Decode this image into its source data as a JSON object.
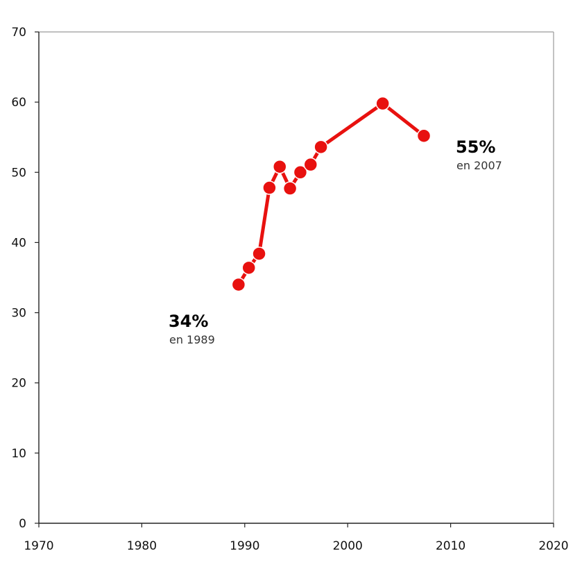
{
  "chart_data": {
    "type": "line",
    "title": "",
    "xlabel": "",
    "ylabel": "",
    "xlim": [
      1970,
      2020
    ],
    "ylim": [
      0,
      70
    ],
    "x_ticks": [
      1970,
      1980,
      1990,
      2000,
      2010,
      2020
    ],
    "y_ticks": [
      0,
      10,
      20,
      30,
      40,
      50,
      60,
      70
    ],
    "grid": false,
    "legend": "none",
    "series": [
      {
        "color": "#e8110f",
        "marker": "circle",
        "x": [
          1989.4,
          1990.4,
          1991.4,
          1992.4,
          1993.4,
          1994.4,
          1995.4,
          1996.4,
          1997.4,
          2003.4,
          2007.4
        ],
        "y": [
          34.0,
          36.4,
          38.4,
          47.8,
          50.8,
          47.7,
          50.0,
          51.1,
          53.6,
          59.8,
          55.2
        ]
      }
    ],
    "annotations": [
      {
        "id": "start",
        "value_text": "34%",
        "note_text": "en 1989",
        "x": 1982.6,
        "y": 28.0
      },
      {
        "id": "end",
        "value_text": "55%",
        "note_text": "en 2007",
        "x": 2010.5,
        "y": 52.8
      }
    ]
  }
}
